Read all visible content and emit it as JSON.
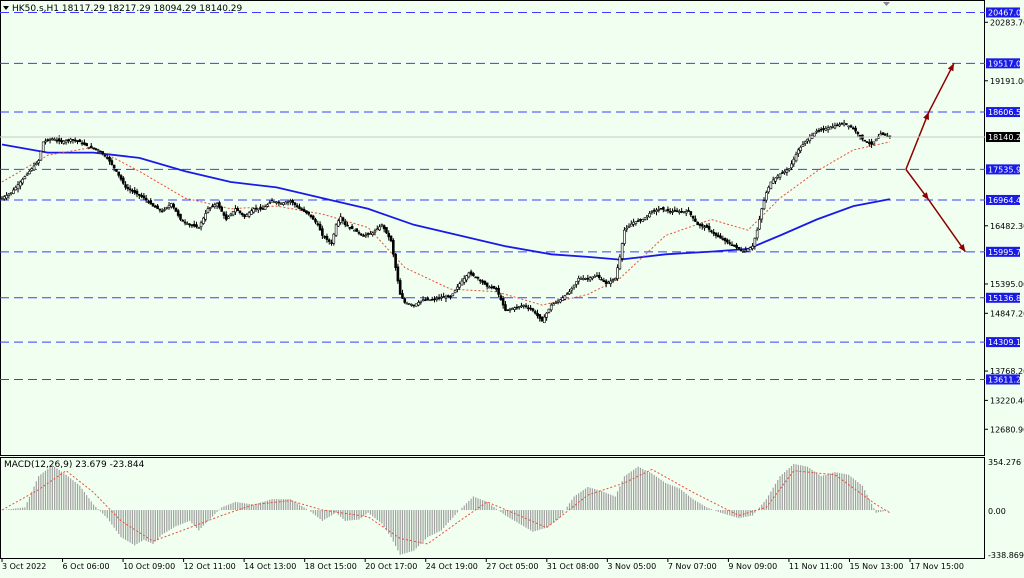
{
  "header": {
    "symbol_line": "HK50.s,H1  18117.29 18217.29 18094.29 18140.29"
  },
  "indicator": {
    "label": "MACD(12,26,9) 23.679 -23.844",
    "ticks": [
      "354.276",
      "0.00",
      "-338.869"
    ]
  },
  "colors": {
    "background": "#f0fff0",
    "candles": "#000000",
    "ma_slow": "#1a1ae6",
    "ma_fast": "#e8503a",
    "levels": "#3c3cff",
    "level_box": "#1a1ae6",
    "arrows": "#8b0000",
    "macd_hist": "#a0a0a0",
    "macd_signal": "#e8503a"
  },
  "chart_data": {
    "type": "candlestick",
    "symbol": "HK50.s",
    "timeframe": "H1",
    "ohlc_last": {
      "open": 18117.29,
      "high": 18217.29,
      "low": 18094.29,
      "close": 18140.29
    },
    "y_range": [
      12200,
      20700
    ],
    "y_ticks": [
      20283.7,
      19191.0,
      16482.3,
      15395.0,
      14847.2,
      13768.2,
      13220.4,
      12680.9
    ],
    "x_labels": [
      "3 Oct 2022",
      "6 Oct 06:00",
      "10 Oct 09:00",
      "12 Oct 11:00",
      "14 Oct 13:00",
      "18 Oct 15:00",
      "20 Oct 17:00",
      "24 Oct 19:00",
      "27 Oct 05:00",
      "31 Oct 08:00",
      "3 Nov 05:00",
      "7 Nov 07:00",
      "9 Nov 09:00",
      "11 Nov 11:00",
      "15 Nov 13:00",
      "17 Nov 15:00"
    ],
    "horizontal_levels": [
      20467.0,
      19517.0,
      18606.58,
      17535.97,
      16964.49,
      15995.7,
      15136.82,
      14309.11,
      13611.24
    ],
    "current_price": 18140.29,
    "price_path": [
      [
        0,
        17000
      ],
      [
        4,
        17100
      ],
      [
        8,
        17300
      ],
      [
        12,
        17500
      ],
      [
        16,
        17700
      ],
      [
        18,
        18050
      ],
      [
        22,
        18110
      ],
      [
        26,
        18050
      ],
      [
        30,
        18100
      ],
      [
        34,
        18050
      ],
      [
        38,
        17950
      ],
      [
        42,
        17900
      ],
      [
        46,
        17750
      ],
      [
        50,
        17500
      ],
      [
        54,
        17200
      ],
      [
        58,
        17100
      ],
      [
        62,
        17000
      ],
      [
        66,
        16850
      ],
      [
        70,
        16750
      ],
      [
        74,
        16900
      ],
      [
        78,
        16600
      ],
      [
        82,
        16500
      ],
      [
        86,
        16450
      ],
      [
        90,
        16800
      ],
      [
        94,
        16900
      ],
      [
        98,
        16600
      ],
      [
        102,
        16800
      ],
      [
        106,
        16650
      ],
      [
        110,
        16800
      ],
      [
        114,
        16800
      ],
      [
        118,
        16950
      ],
      [
        122,
        16900
      ],
      [
        126,
        16950
      ],
      [
        130,
        16800
      ],
      [
        134,
        16700
      ],
      [
        138,
        16500
      ],
      [
        140,
        16300
      ],
      [
        144,
        16150
      ],
      [
        146,
        16500
      ],
      [
        148,
        16650
      ],
      [
        150,
        16500
      ],
      [
        154,
        16400
      ],
      [
        158,
        16300
      ],
      [
        162,
        16350
      ],
      [
        166,
        16500
      ],
      [
        170,
        16200
      ],
      [
        172,
        15700
      ],
      [
        174,
        15200
      ],
      [
        176,
        15050
      ],
      [
        180,
        15000
      ],
      [
        184,
        15100
      ],
      [
        188,
        15100
      ],
      [
        192,
        15150
      ],
      [
        196,
        15150
      ],
      [
        200,
        15400
      ],
      [
        204,
        15600
      ],
      [
        208,
        15500
      ],
      [
        212,
        15350
      ],
      [
        216,
        15300
      ],
      [
        220,
        14900
      ],
      [
        224,
        14950
      ],
      [
        228,
        15000
      ],
      [
        232,
        14900
      ],
      [
        236,
        14700
      ],
      [
        240,
        15000
      ],
      [
        244,
        15100
      ],
      [
        248,
        15250
      ],
      [
        252,
        15500
      ],
      [
        256,
        15500
      ],
      [
        260,
        15550
      ],
      [
        264,
        15400
      ],
      [
        268,
        15500
      ],
      [
        270,
        15900
      ],
      [
        272,
        16400
      ],
      [
        276,
        16550
      ],
      [
        280,
        16600
      ],
      [
        284,
        16750
      ],
      [
        288,
        16800
      ],
      [
        292,
        16750
      ],
      [
        296,
        16750
      ],
      [
        300,
        16750
      ],
      [
        304,
        16500
      ],
      [
        308,
        16450
      ],
      [
        312,
        16300
      ],
      [
        316,
        16200
      ],
      [
        320,
        16100
      ],
      [
        324,
        16000
      ],
      [
        328,
        16100
      ],
      [
        330,
        16400
      ],
      [
        332,
        16800
      ],
      [
        334,
        17100
      ],
      [
        336,
        17300
      ],
      [
        340,
        17450
      ],
      [
        344,
        17550
      ],
      [
        348,
        17900
      ],
      [
        352,
        18100
      ],
      [
        356,
        18250
      ],
      [
        360,
        18300
      ],
      [
        364,
        18350
      ],
      [
        368,
        18400
      ],
      [
        372,
        18300
      ],
      [
        376,
        18100
      ],
      [
        380,
        18000
      ],
      [
        384,
        18200
      ],
      [
        388,
        18140
      ]
    ],
    "moving_average_fast": [
      [
        0,
        17300
      ],
      [
        20,
        17800
      ],
      [
        40,
        17950
      ],
      [
        60,
        17500
      ],
      [
        80,
        17000
      ],
      [
        100,
        16800
      ],
      [
        120,
        16850
      ],
      [
        140,
        16700
      ],
      [
        160,
        16450
      ],
      [
        176,
        15700
      ],
      [
        196,
        15300
      ],
      [
        216,
        15250
      ],
      [
        236,
        15000
      ],
      [
        256,
        15200
      ],
      [
        270,
        15500
      ],
      [
        290,
        16300
      ],
      [
        310,
        16600
      ],
      [
        326,
        16400
      ],
      [
        340,
        17000
      ],
      [
        356,
        17500
      ],
      [
        372,
        17900
      ],
      [
        388,
        18050
      ]
    ],
    "moving_average_slow": [
      [
        0,
        18000
      ],
      [
        20,
        17850
      ],
      [
        40,
        17850
      ],
      [
        60,
        17750
      ],
      [
        80,
        17500
      ],
      [
        100,
        17300
      ],
      [
        120,
        17200
      ],
      [
        140,
        17000
      ],
      [
        160,
        16800
      ],
      [
        180,
        16500
      ],
      [
        200,
        16300
      ],
      [
        220,
        16100
      ],
      [
        240,
        15950
      ],
      [
        256,
        15900
      ],
      [
        270,
        15850
      ],
      [
        290,
        15950
      ],
      [
        310,
        16000
      ],
      [
        326,
        16050
      ],
      [
        340,
        16300
      ],
      [
        356,
        16600
      ],
      [
        372,
        16850
      ],
      [
        388,
        16980
      ]
    ],
    "projection_arrows": [
      {
        "from": [
          395,
          17535.97
        ],
        "to": [
          405,
          18606.58
        ]
      },
      {
        "from": [
          405,
          18606.58
        ],
        "to": [
          416,
          19517.0
        ]
      },
      {
        "from": [
          395,
          17535.97
        ],
        "to": [
          405,
          16964.49
        ]
      },
      {
        "from": [
          405,
          16964.49
        ],
        "to": [
          421,
          15995.7
        ]
      }
    ],
    "macd": {
      "params": "12,26,9",
      "main": 23.679,
      "signal": -23.844,
      "y_range": [
        -338.869,
        354.276
      ],
      "histogram": [
        [
          0,
          0
        ],
        [
          10,
          20
        ],
        [
          16,
          250
        ],
        [
          22,
          330
        ],
        [
          28,
          260
        ],
        [
          34,
          180
        ],
        [
          40,
          40
        ],
        [
          46,
          -60
        ],
        [
          52,
          -200
        ],
        [
          58,
          -260
        ],
        [
          62,
          -220
        ],
        [
          66,
          -250
        ],
        [
          70,
          -180
        ],
        [
          76,
          -120
        ],
        [
          82,
          -80
        ],
        [
          86,
          -150
        ],
        [
          90,
          -80
        ],
        [
          96,
          20
        ],
        [
          102,
          60
        ],
        [
          110,
          40
        ],
        [
          118,
          80
        ],
        [
          126,
          80
        ],
        [
          134,
          0
        ],
        [
          140,
          -80
        ],
        [
          146,
          -20
        ],
        [
          150,
          -80
        ],
        [
          156,
          -70
        ],
        [
          160,
          -20
        ],
        [
          166,
          -100
        ],
        [
          170,
          -200
        ],
        [
          174,
          -330
        ],
        [
          180,
          -300
        ],
        [
          186,
          -200
        ],
        [
          192,
          -150
        ],
        [
          200,
          0
        ],
        [
          206,
          100
        ],
        [
          212,
          60
        ],
        [
          220,
          -40
        ],
        [
          226,
          -100
        ],
        [
          232,
          -160
        ],
        [
          238,
          -130
        ],
        [
          244,
          -50
        ],
        [
          250,
          100
        ],
        [
          256,
          170
        ],
        [
          262,
          140
        ],
        [
          268,
          100
        ],
        [
          272,
          250
        ],
        [
          278,
          320
        ],
        [
          284,
          270
        ],
        [
          290,
          200
        ],
        [
          296,
          160
        ],
        [
          302,
          80
        ],
        [
          308,
          20
        ],
        [
          314,
          -20
        ],
        [
          322,
          -60
        ],
        [
          328,
          -40
        ],
        [
          334,
          80
        ],
        [
          340,
          250
        ],
        [
          346,
          340
        ],
        [
          352,
          320
        ],
        [
          358,
          250
        ],
        [
          364,
          280
        ],
        [
          370,
          260
        ],
        [
          376,
          180
        ],
        [
          382,
          -20
        ],
        [
          388,
          0
        ]
      ],
      "signal_line": [
        [
          0,
          0
        ],
        [
          16,
          150
        ],
        [
          28,
          290
        ],
        [
          40,
          130
        ],
        [
          52,
          -80
        ],
        [
          66,
          -230
        ],
        [
          82,
          -130
        ],
        [
          96,
          -40
        ],
        [
          110,
          40
        ],
        [
          126,
          70
        ],
        [
          140,
          0
        ],
        [
          160,
          -50
        ],
        [
          174,
          -210
        ],
        [
          186,
          -250
        ],
        [
          200,
          -80
        ],
        [
          212,
          60
        ],
        [
          226,
          -40
        ],
        [
          238,
          -130
        ],
        [
          256,
          110
        ],
        [
          272,
          200
        ],
        [
          284,
          300
        ],
        [
          302,
          130
        ],
        [
          322,
          -40
        ],
        [
          334,
          20
        ],
        [
          346,
          290
        ],
        [
          364,
          260
        ],
        [
          382,
          40
        ],
        [
          388,
          -20
        ]
      ]
    }
  }
}
